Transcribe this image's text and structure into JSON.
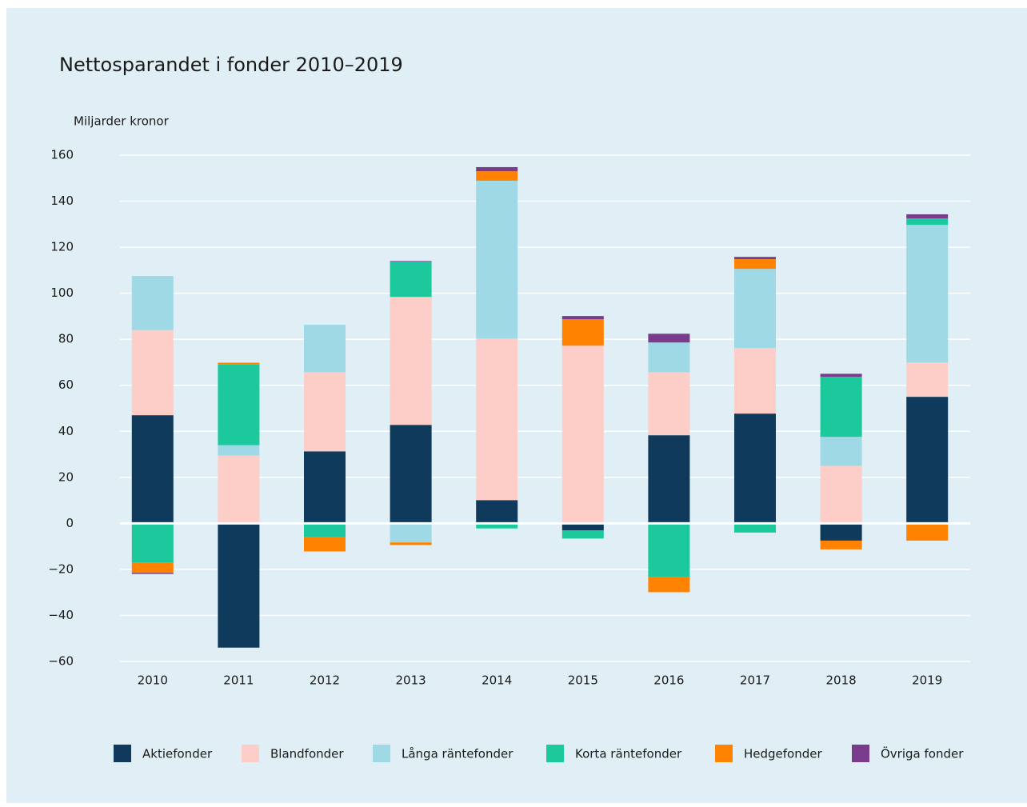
{
  "chart_data": {
    "type": "bar",
    "stacked": true,
    "title": "Nettosparandet i fonder 2010–2019",
    "y_label": "Miljarder kronor",
    "categories": [
      "2010",
      "2011",
      "2012",
      "2013",
      "2014",
      "2015",
      "2016",
      "2017",
      "2018",
      "2019"
    ],
    "series": [
      {
        "name": "Aktiefonder",
        "color": "#0f3a5c",
        "values": [
          47,
          -54,
          31.3,
          42.8,
          10.1,
          -3,
          38.3,
          47.7,
          -7.5,
          55
        ]
      },
      {
        "name": "Blandfonder",
        "color": "#fdcdc7",
        "values": [
          37,
          29.5,
          34.4,
          55.6,
          70.2,
          77.2,
          27.4,
          28.5,
          25,
          14.9
        ]
      },
      {
        "name": "Långa räntefonder",
        "color": "#9fd9e5",
        "values": [
          23.5,
          4.5,
          20.6,
          -8.3,
          68.6,
          0,
          12.9,
          34.4,
          12.6,
          59.8
        ]
      },
      {
        "name": "Korta räntefonder",
        "color": "#1bc99c",
        "values": [
          -17,
          35,
          -6,
          15.3,
          -2.2,
          -3.6,
          -23.3,
          -4,
          26.1,
          2.8
        ]
      },
      {
        "name": "Hedgefonder",
        "color": "#ff8200",
        "values": [
          -4.5,
          0.8,
          -6.2,
          -1.1,
          4.1,
          11.5,
          -6.6,
          4.2,
          -3.8,
          -7.5
        ]
      },
      {
        "name": "Övriga fonder",
        "color": "#7b3b8c",
        "values": [
          -0.5,
          0,
          0,
          0.3,
          1.8,
          1.4,
          3.8,
          1.0,
          1.3,
          1.8
        ]
      }
    ],
    "ylim": [
      -60,
      160
    ],
    "yticks": [
      {
        "value": -60,
        "label": "−60"
      },
      {
        "value": -40,
        "label": "−40"
      },
      {
        "value": -20,
        "label": "−20"
      },
      0,
      20,
      40,
      60,
      80,
      100,
      120,
      140,
      160
    ],
    "grid": true,
    "legend": "bottom"
  }
}
